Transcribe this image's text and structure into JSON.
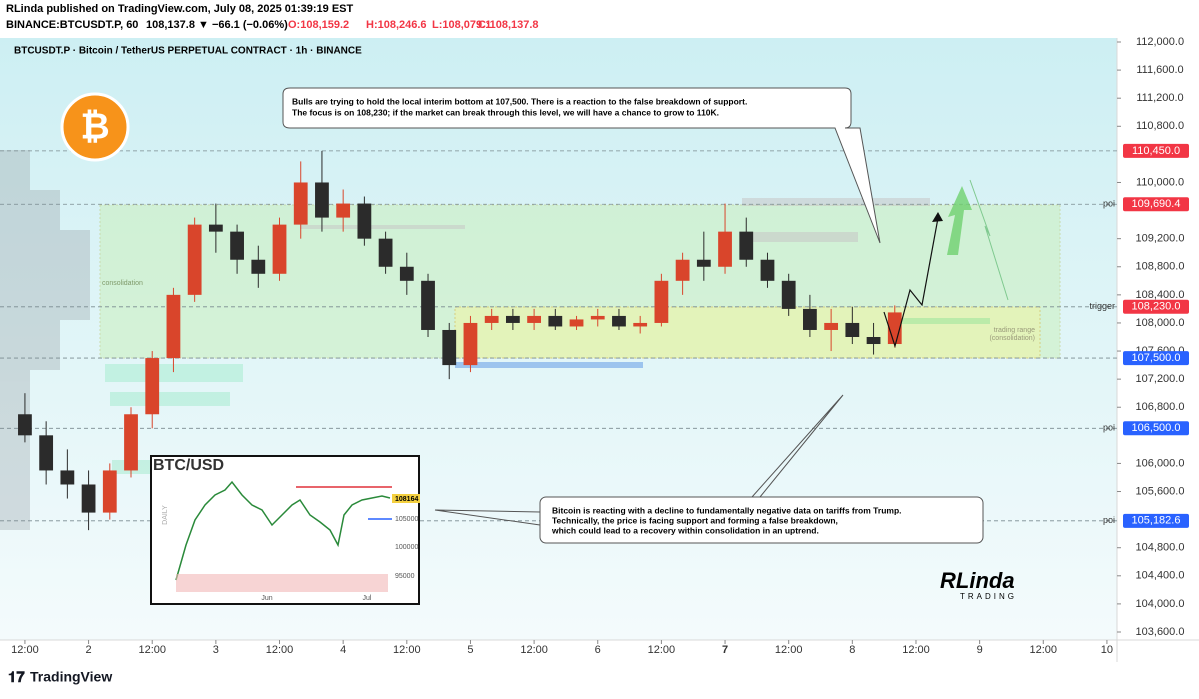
{
  "header": {
    "publisher": "RLinda published on TradingView.com, July 08, 2025 01:39:19 EST",
    "symbol": "BINANCE:BTCUSDT.P, 60",
    "last": "108,137.8",
    "change": "▼ −66.1 (−0.06%)",
    "open": "O:108,159.2",
    "high": "H:108,246.6",
    "low": "L:108,079.1",
    "close": "C:108,137.8"
  },
  "chart_data": {
    "type": "candlestick",
    "title": "BTCUSDT.P · Bitcoin / TetherUS PERPETUAL CONTRACT · 1h · BINANCE",
    "up_color": "#d9452b",
    "down_color": "#2b2b2b",
    "x": [
      12,
      16,
      20,
      24,
      28,
      32,
      36,
      40,
      44,
      48,
      52,
      56,
      60,
      64,
      68,
      72,
      76,
      80,
      84,
      88,
      92,
      96,
      100,
      104,
      108,
      112,
      116,
      120,
      124,
      128,
      132,
      136,
      140,
      144,
      148,
      152,
      156,
      160,
      164,
      168,
      172,
      176
    ],
    "open": [
      106700,
      106400,
      105900,
      105700,
      105300,
      105900,
      106700,
      107500,
      108400,
      109400,
      109300,
      108900,
      108700,
      109400,
      110000,
      109500,
      109700,
      109200,
      108800,
      108600,
      107900,
      107400,
      108000,
      108100,
      108000,
      108100,
      107950,
      108050,
      108100,
      107950,
      108000,
      108600,
      108900,
      108800,
      109300,
      108900,
      108600,
      108200,
      107900,
      108000,
      107800,
      107700
    ],
    "high": [
      107000,
      106600,
      106200,
      105900,
      106000,
      106800,
      107600,
      108500,
      109500,
      109700,
      109400,
      109100,
      109500,
      110300,
      110450,
      109900,
      109800,
      109300,
      109000,
      108700,
      108000,
      108100,
      108200,
      108200,
      108200,
      108200,
      108100,
      108200,
      108200,
      108100,
      108700,
      109000,
      109300,
      109700,
      109500,
      109000,
      108700,
      108400,
      108200,
      108230,
      108000,
      108250
    ],
    "low": [
      106300,
      105700,
      105500,
      105050,
      105200,
      105800,
      106500,
      107300,
      108300,
      109000,
      108700,
      108500,
      108600,
      109200,
      109300,
      109300,
      109100,
      108700,
      108400,
      107800,
      107200,
      107300,
      107900,
      107900,
      107900,
      107900,
      107900,
      107950,
      107900,
      107850,
      107950,
      108400,
      108600,
      108700,
      108800,
      108500,
      108100,
      107800,
      107600,
      107700,
      107550,
      107650
    ],
    "close": [
      106400,
      105900,
      105700,
      105300,
      105900,
      106700,
      107500,
      108400,
      109400,
      109300,
      108900,
      108700,
      109400,
      110000,
      109500,
      109700,
      109200,
      108800,
      108600,
      107900,
      107400,
      108000,
      108100,
      108000,
      108100,
      107950,
      108050,
      108100,
      107950,
      108000,
      108600,
      108900,
      108800,
      109300,
      108900,
      108600,
      108200,
      107900,
      108000,
      107800,
      107700,
      108150
    ],
    "xlim": [
      7.3,
      217.9
    ],
    "xticks": [
      {
        "value": 12,
        "label": "12:00"
      },
      {
        "value": 24,
        "label": "2"
      },
      {
        "value": 36,
        "label": "12:00"
      },
      {
        "value": 48,
        "label": "3"
      },
      {
        "value": 60,
        "label": "12:00"
      },
      {
        "value": 72,
        "label": "4"
      },
      {
        "value": 84,
        "label": "12:00"
      },
      {
        "value": 96,
        "label": "5"
      },
      {
        "value": 108,
        "label": "12:00"
      },
      {
        "value": 120,
        "label": "6"
      },
      {
        "value": 132,
        "label": "12:00"
      },
      {
        "value": 144,
        "label": "7"
      },
      {
        "value": 156,
        "label": "12:00"
      },
      {
        "value": 168,
        "label": "8"
      },
      {
        "value": 180,
        "label": "12:00"
      },
      {
        "value": 192,
        "label": "9"
      },
      {
        "value": 204,
        "label": "12:00"
      },
      {
        "value": 216,
        "label": "10"
      }
    ],
    "ylim": [
      103486,
      112057
    ],
    "yticks": [
      {
        "value": 112000,
        "label": "112,000.0"
      },
      {
        "value": 111600,
        "label": "111,600.0"
      },
      {
        "value": 111200,
        "label": "111,200.0"
      },
      {
        "value": 110800,
        "label": "110,800.0"
      },
      {
        "value": 110000,
        "label": "110,000.0"
      },
      {
        "value": 109200,
        "label": "109,200.0"
      },
      {
        "value": 108800,
        "label": "108,800.0"
      },
      {
        "value": 108400,
        "label": "108,400.0"
      },
      {
        "value": 108000,
        "label": "108,000.0"
      },
      {
        "value": 107600,
        "label": "107,600.0"
      },
      {
        "value": 107200,
        "label": "107,200.0"
      },
      {
        "value": 106800,
        "label": "106,800.0"
      },
      {
        "value": 106000,
        "label": "106,000.0"
      },
      {
        "value": 105600,
        "label": "105,600.0"
      },
      {
        "value": 104800,
        "label": "104,800.0"
      },
      {
        "value": 104400,
        "label": "104,400.0"
      },
      {
        "value": 104000,
        "label": "104,000.0"
      },
      {
        "value": 103600,
        "label": "103,600.0"
      }
    ],
    "levels": [
      {
        "value": 110450,
        "label": "110,450.0",
        "color": "#f23645"
      },
      {
        "value": 109690.4,
        "label": "109,690.4",
        "color": "#f23645",
        "tag": "poi"
      },
      {
        "value": 108230,
        "label": "108,230.0",
        "color": "#f23645",
        "tag": "trigger"
      },
      {
        "value": 107500,
        "label": "107,500.0",
        "color": "#2962ff"
      },
      {
        "value": 106500,
        "label": "106,500.0",
        "color": "#2962ff",
        "tag": "poi"
      },
      {
        "value": 105182.6,
        "label": "105,182.6",
        "color": "#2962ff",
        "tag": "poi"
      }
    ],
    "zone_labels": [
      "consolidation",
      "trading range",
      "(consolidation)"
    ],
    "annotations": [
      [
        "Bulls are trying to hold the local interim bottom at 107,500. There is a reaction to the false breakdown of support.",
        "The focus is on 108,230; if the market can break through this level, we will have a chance to grow to 110K."
      ],
      [
        "Bitcoin is reacting with a decline to fundamentally negative data on tariffs from Trump.",
        "Technically, the price is facing support and forming a false breakdown,",
        "which could lead to a recovery within consolidation in an uptrend."
      ]
    ],
    "inset": {
      "title": "BTC/USD",
      "side": "DAILY",
      "price": "108164",
      "ticks": [
        "105000",
        "100000",
        "95000"
      ],
      "months": [
        "Jun",
        "Jul"
      ]
    }
  },
  "brand": {
    "author": "RLinda",
    "sub": "TRADING",
    "footer": "TradingView"
  }
}
